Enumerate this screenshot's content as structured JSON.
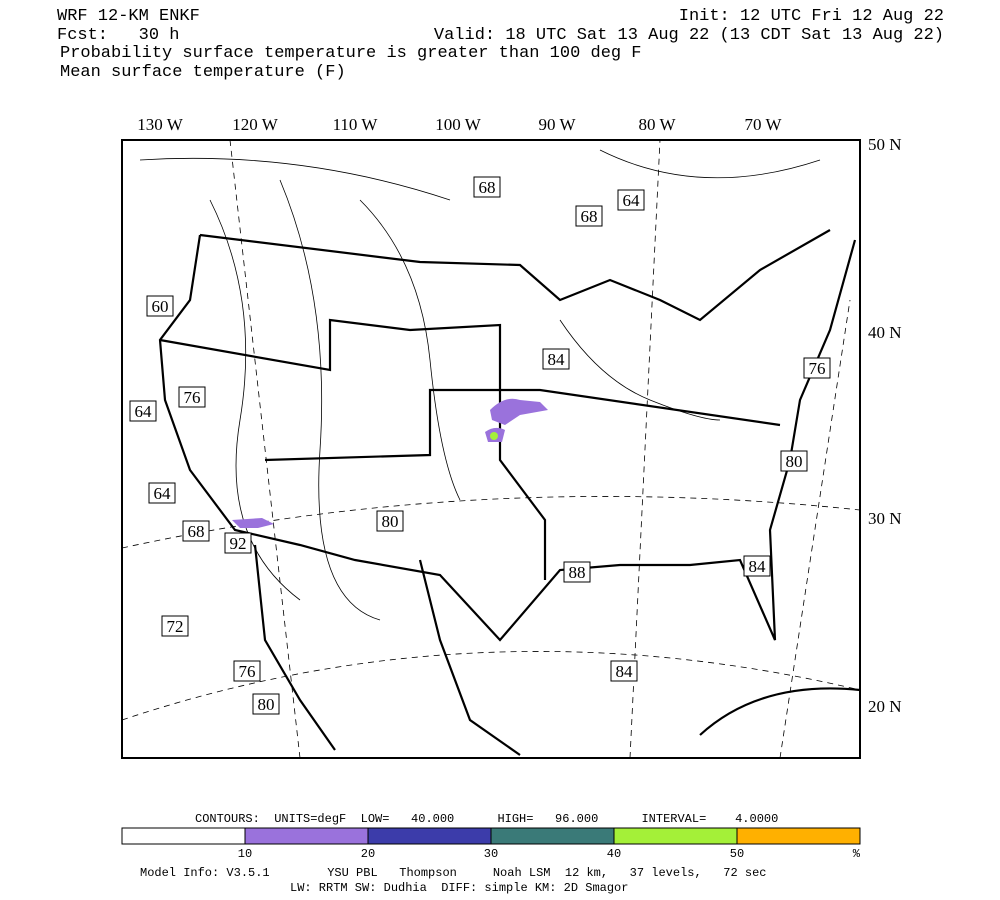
{
  "header": {
    "title": "WRF 12-KM ENKF",
    "init": "Init: 12 UTC Fri 12 Aug 22",
    "fcst": "Fcst:   30 h",
    "valid": "Valid: 18 UTC Sat 13 Aug 22 (13 CDT Sat 13 Aug 22)",
    "line3": "Probability surface temperature is greater than 100 deg F",
    "line4": "Mean surface temperature (F)"
  },
  "map": {
    "lon_labels": [
      "130 W",
      "120 W",
      "110 W",
      "100 W",
      "90 W",
      "80 W",
      "70 W"
    ],
    "lat_labels": [
      "50 N",
      "40 N",
      "30 N",
      "20 N"
    ],
    "contour_labels": [
      68,
      68,
      64,
      60,
      84,
      76,
      76,
      64,
      80,
      64,
      80,
      68,
      92,
      88,
      84,
      72,
      76,
      84,
      80
    ]
  },
  "legend": {
    "contours": "CONTOURS:  UNITS=degF  LOW=   40.000      HIGH=   96.000      INTERVAL=    4.0000",
    "colors": [
      "#ffffff",
      "#9a72dc",
      "#3c3caa",
      "#3a7a78",
      "#a4f038",
      "#ffb000"
    ],
    "ticks": [
      10,
      20,
      30,
      40,
      50,
      "%"
    ]
  },
  "footer": {
    "line1": "Model Info: V3.5.1        YSU PBL   Thompson     Noah LSM  12 km,   37 levels,   72 sec",
    "line2": "LW: RRTM SW: Dudhia  DIFF: simple KM: 2D Smagor"
  }
}
